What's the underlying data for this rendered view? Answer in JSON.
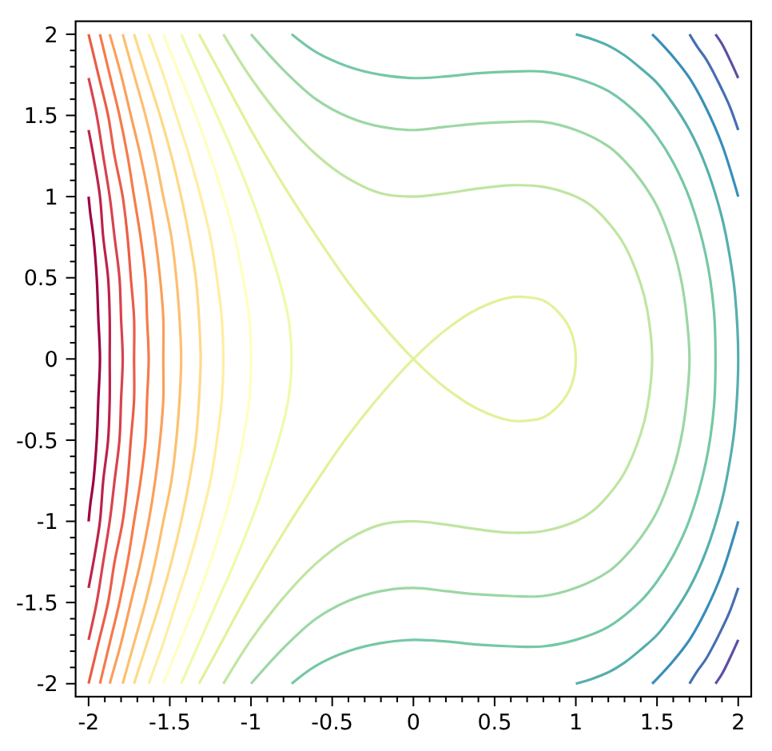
{
  "chart_data": {
    "type": "line",
    "xlim": [
      -2.08,
      2.08
    ],
    "ylim": [
      -2.08,
      2.08
    ],
    "xticks": [
      -2,
      {
        "value": -1.9,
        "label": null
      },
      {
        "value": -1.8,
        "label": null
      },
      {
        "value": -1.7,
        "label": null
      },
      {
        "value": -1.6,
        "label": null
      },
      -1.5,
      {
        "value": -1.4,
        "label": null
      },
      {
        "value": -1.3,
        "label": null
      },
      {
        "value": -1.2,
        "label": null
      },
      {
        "value": -1.1,
        "label": null
      },
      -1,
      {
        "value": -0.9,
        "label": null
      },
      {
        "value": -0.8,
        "label": null
      },
      {
        "value": -0.7,
        "label": null
      },
      {
        "value": -0.6,
        "label": null
      },
      -0.5,
      {
        "value": -0.4,
        "label": null
      },
      {
        "value": -0.3,
        "label": null
      },
      {
        "value": -0.2,
        "label": null
      },
      {
        "value": -0.1,
        "label": null
      },
      0,
      {
        "value": 0.1,
        "label": null
      },
      {
        "value": 0.2,
        "label": null
      },
      {
        "value": 0.3,
        "label": null
      },
      {
        "value": 0.4,
        "label": null
      },
      0.5,
      {
        "value": 0.6,
        "label": null
      },
      {
        "value": 0.7,
        "label": null
      },
      {
        "value": 0.8,
        "label": null
      },
      {
        "value": 0.9,
        "label": null
      },
      1,
      {
        "value": 1.1,
        "label": null
      },
      {
        "value": 1.2,
        "label": null
      },
      {
        "value": 1.3,
        "label": null
      },
      {
        "value": 1.4,
        "label": null
      },
      1.5,
      {
        "value": 1.6,
        "label": null
      },
      {
        "value": 1.7,
        "label": null
      },
      {
        "value": 1.8,
        "label": null
      },
      {
        "value": 1.9,
        "label": null
      },
      2
    ],
    "yticks": [
      -2,
      {
        "value": -1.9,
        "label": null
      },
      {
        "value": -1.8,
        "label": null
      },
      {
        "value": -1.7,
        "label": null
      },
      {
        "value": -1.6,
        "label": null
      },
      -1.5,
      {
        "value": -1.4,
        "label": null
      },
      {
        "value": -1.3,
        "label": null
      },
      {
        "value": -1.2,
        "label": null
      },
      {
        "value": -1.1,
        "label": null
      },
      -1,
      {
        "value": -0.9,
        "label": null
      },
      {
        "value": -0.8,
        "label": null
      },
      {
        "value": -0.7,
        "label": null
      },
      {
        "value": -0.6,
        "label": null
      },
      -0.5,
      {
        "value": -0.4,
        "label": null
      },
      {
        "value": -0.3,
        "label": null
      },
      {
        "value": -0.2,
        "label": null
      },
      {
        "value": -0.1,
        "label": null
      },
      0,
      {
        "value": 0.1,
        "label": null
      },
      {
        "value": 0.2,
        "label": null
      },
      {
        "value": 0.3,
        "label": null
      },
      {
        "value": 0.4,
        "label": null
      },
      0.5,
      {
        "value": 0.6,
        "label": null
      },
      {
        "value": 0.7,
        "label": null
      },
      {
        "value": 0.8,
        "label": null
      },
      {
        "value": 0.9,
        "label": null
      },
      1,
      {
        "value": 1.1,
        "label": null
      },
      {
        "value": 1.2,
        "label": null
      },
      {
        "value": 1.3,
        "label": null
      },
      {
        "value": 1.4,
        "label": null
      },
      1.5,
      {
        "value": 1.6,
        "label": null
      },
      {
        "value": 1.7,
        "label": null
      },
      {
        "value": 1.8,
        "label": null
      },
      {
        "value": 1.9,
        "label": null
      },
      2
    ],
    "series": [
      {
        "color": "#9e0142",
        "x": [
          -2,
          -1.99,
          -1.97,
          -1.95,
          -1.94,
          -1.93,
          -1.94,
          -1.95,
          -1.97,
          -1.99,
          -2
        ],
        "values": [
          1,
          0.9,
          0.75,
          0.5,
          0.25,
          0,
          -0.25,
          -0.5,
          -0.75,
          -0.9,
          -1
        ]
      },
      {
        "color": "#bd2349",
        "x": [
          -2,
          -1.97,
          -1.93,
          -1.91,
          -1.88,
          -1.87,
          -1.87,
          -1.87,
          -1.88,
          -1.91,
          -1.93,
          -1.97,
          -2
        ],
        "values": [
          1.41,
          1.25,
          1,
          0.75,
          0.5,
          0.25,
          0,
          -0.25,
          -0.5,
          -0.75,
          -1,
          -1.25,
          -1.41
        ]
      },
      {
        "color": "#d8434e",
        "x": [
          -2,
          -1.95,
          -1.91,
          -1.87,
          -1.84,
          -1.81,
          -1.8,
          -1.79,
          -1.8,
          -1.81,
          -1.84,
          -1.87,
          -1.91,
          -1.95,
          -2
        ],
        "values": [
          1.73,
          1.5,
          1.25,
          1,
          0.75,
          0.5,
          0.25,
          0,
          -0.25,
          -0.5,
          -0.75,
          -1,
          -1.25,
          -1.5,
          -1.73
        ]
      },
      {
        "color": "#ea5d47",
        "x": [
          -2,
          -1.94,
          -1.88,
          -1.84,
          -1.79,
          -1.76,
          -1.74,
          -1.72,
          -1.72,
          -1.72,
          -1.74,
          -1.76,
          -1.79,
          -1.84,
          -1.88,
          -1.94,
          -2
        ],
        "values": [
          2,
          1.75,
          1.5,
          1.25,
          1,
          0.75,
          0.5,
          0.25,
          0,
          -0.25,
          -0.5,
          -0.75,
          -1,
          -1.25,
          -1.5,
          -1.75,
          -2
        ]
      },
      {
        "color": "#f67b4a",
        "x": [
          -1.93,
          -1.87,
          -1.81,
          -1.76,
          -1.72,
          -1.68,
          -1.65,
          -1.64,
          -1.63,
          -1.64,
          -1.65,
          -1.68,
          -1.72,
          -1.76,
          -1.81,
          -1.87,
          -1.93
        ],
        "values": [
          2,
          1.75,
          1.5,
          1.25,
          1,
          0.75,
          0.5,
          0.25,
          0,
          -0.25,
          -0.5,
          -0.75,
          -1,
          -1.25,
          -1.5,
          -1.75,
          -2
        ]
      },
      {
        "color": "#fba05a",
        "x": [
          -1.87,
          -1.8,
          -1.74,
          -1.68,
          -1.63,
          -1.59,
          -1.56,
          -1.54,
          -1.54,
          -1.54,
          -1.56,
          -1.59,
          -1.63,
          -1.68,
          -1.74,
          -1.8,
          -1.87
        ],
        "values": [
          2,
          1.75,
          1.5,
          1.25,
          1,
          0.75,
          0.5,
          0.25,
          0,
          -0.25,
          -0.5,
          -0.75,
          -1,
          -1.25,
          -1.5,
          -1.75,
          -2
        ]
      },
      {
        "color": "#fdbf6f",
        "x": [
          -1.79,
          -1.72,
          -1.65,
          -1.59,
          -1.54,
          -1.49,
          -1.46,
          -1.44,
          -1.43,
          -1.44,
          -1.46,
          -1.49,
          -1.54,
          -1.59,
          -1.65,
          -1.72,
          -1.79
        ],
        "values": [
          2,
          1.75,
          1.5,
          1.25,
          1,
          0.75,
          0.5,
          0.25,
          0,
          -0.25,
          -0.5,
          -0.75,
          -1,
          -1.25,
          -1.5,
          -1.75,
          -2
        ]
      },
      {
        "color": "#feda86",
        "x": [
          -1.72,
          -1.64,
          -1.56,
          -1.49,
          -1.43,
          -1.38,
          -1.34,
          -1.32,
          -1.31,
          -1.32,
          -1.34,
          -1.38,
          -1.43,
          -1.49,
          -1.56,
          -1.64,
          -1.72
        ],
        "values": [
          2,
          1.75,
          1.5,
          1.25,
          1,
          0.75,
          0.5,
          0.25,
          0,
          -0.25,
          -0.5,
          -0.75,
          -1,
          -1.25,
          -1.5,
          -1.75,
          -2
        ]
      },
      {
        "color": "#feeea2",
        "x": [
          -1.63,
          -1.54,
          -1.46,
          -1.38,
          -1.31,
          -1.25,
          -1.21,
          -1.18,
          -1.17,
          -1.18,
          -1.21,
          -1.25,
          -1.31,
          -1.38,
          -1.46,
          -1.54,
          -1.63
        ],
        "values": [
          2,
          1.75,
          1.5,
          1.25,
          1,
          0.75,
          0.5,
          0.25,
          0,
          -0.25,
          -0.5,
          -0.75,
          -1,
          -1.25,
          -1.5,
          -1.75,
          -2
        ]
      },
      {
        "color": "#ffffbf",
        "x": [
          -1.54,
          -1.44,
          -1.34,
          -1.25,
          -1.17,
          -1.1,
          -1.05,
          -1.01,
          -1,
          -1.01,
          -1.05,
          -1.1,
          -1.17,
          -1.25,
          -1.34,
          -1.44,
          -1.54
        ],
        "values": [
          2,
          1.75,
          1.5,
          1.25,
          1,
          0.75,
          0.5,
          0.25,
          0,
          -0.25,
          -0.5,
          -0.75,
          -1,
          -1.25,
          -1.5,
          -1.75,
          -2
        ]
      },
      {
        "color": "#f1f9a9",
        "x": [
          -1.43,
          -1.32,
          -1.21,
          -1.1,
          -1,
          -0.91,
          -0.83,
          -0.77,
          -0.75,
          -0.77,
          -0.83,
          -0.91,
          -1,
          -1.1,
          -1.21,
          -1.32,
          -1.43
        ],
        "values": [
          2,
          1.75,
          1.5,
          1.25,
          1,
          0.75,
          0.5,
          0.25,
          0,
          -0.25,
          -0.5,
          -0.75,
          -1,
          -1.25,
          -1.5,
          -1.75,
          -2
        ]
      },
      {
        "color": "#e0f299",
        "x": [
          -1.32,
          -1.2,
          -1,
          -0.8,
          -0.6,
          -0.4,
          -0.2,
          0,
          0.2,
          0.4,
          0.6,
          0.7,
          0.8,
          0.9,
          0.97,
          1,
          0.97,
          0.9,
          0.8,
          0.7,
          0.6,
          0.4,
          0.2,
          0,
          -0.2,
          -0.4,
          -0.6,
          -0.8,
          -1,
          -1.2,
          -1.32
        ],
        "values": [
          2,
          1.78,
          1.41,
          1.07,
          0.76,
          0.47,
          0.22,
          0,
          -0.18,
          -0.31,
          -0.38,
          -0.38,
          -0.36,
          -0.28,
          -0.17,
          0,
          0.17,
          0.28,
          0.36,
          0.38,
          0.38,
          0.31,
          0.18,
          0,
          -0.22,
          -0.47,
          -0.76,
          -1.07,
          -1.41,
          -1.78,
          -2
        ]
      },
      {
        "color": "#bfe5a0",
        "x": [
          -1.17,
          -1,
          -0.8,
          -0.6,
          -0.4,
          -0.2,
          0,
          0.2,
          0.4,
          0.6,
          0.8,
          1,
          1.1,
          1.2,
          1.3,
          1.4,
          1.44,
          1.47,
          1.44,
          1.4,
          1.3,
          1.2,
          1.1,
          1,
          0.8,
          0.6,
          0.4,
          0.2,
          0,
          -0.2,
          -0.4,
          -0.6,
          -0.8,
          -1,
          -1.17
        ],
        "values": [
          2,
          1.73,
          1.47,
          1.26,
          1.11,
          1.02,
          1,
          1.02,
          1.05,
          1.07,
          1.06,
          1,
          0.94,
          0.84,
          0.7,
          0.46,
          0.3,
          0,
          -0.3,
          -0.46,
          -0.7,
          -0.84,
          -0.94,
          -1,
          -1.06,
          -1.07,
          -1.05,
          -1.02,
          -1,
          -1.02,
          -1.11,
          -1.26,
          -1.47,
          -1.73,
          -2
        ]
      },
      {
        "color": "#9cd7a4",
        "x": [
          -1,
          -0.8,
          -0.6,
          -0.4,
          -0.2,
          0,
          0.2,
          0.4,
          0.6,
          0.8,
          1,
          1.2,
          1.3,
          1.4,
          1.5,
          1.6,
          1.65,
          1.68,
          1.7,
          1.68,
          1.65,
          1.6,
          1.5,
          1.4,
          1.3,
          1.2,
          1,
          0.8,
          0.6,
          0.4,
          0.2,
          0,
          -0.2,
          -0.4,
          -0.6,
          -0.8,
          -1
        ],
        "values": [
          2,
          1.78,
          1.6,
          1.49,
          1.43,
          1.41,
          1.43,
          1.45,
          1.46,
          1.46,
          1.41,
          1.31,
          1.22,
          1.1,
          0.94,
          0.68,
          0.48,
          0.28,
          0,
          -0.28,
          -0.48,
          -0.68,
          -0.94,
          -1.1,
          -1.22,
          -1.31,
          -1.41,
          -1.46,
          -1.46,
          -1.45,
          -1.43,
          -1.41,
          -1.43,
          -1.49,
          -1.6,
          -1.78,
          -2
        ]
      },
      {
        "color": "#75c8a5",
        "x": [
          -0.75,
          -0.6,
          -0.4,
          -0.2,
          0,
          0.2,
          0.4,
          0.6,
          0.8,
          1,
          1.2,
          1.4,
          1.5,
          1.6,
          1.7,
          1.8,
          1.85,
          1.86,
          1.85,
          1.8,
          1.7,
          1.6,
          1.5,
          1.4,
          1.2,
          1,
          0.8,
          0.6,
          0.4,
          0.2,
          0,
          -0.2,
          -0.4,
          -0.6,
          -0.75
        ],
        "values": [
          2,
          1.89,
          1.8,
          1.75,
          1.73,
          1.74,
          1.76,
          1.77,
          1.77,
          1.73,
          1.65,
          1.49,
          1.37,
          1.21,
          0.99,
          0.64,
          0.3,
          0,
          -0.3,
          -0.64,
          -0.99,
          -1.21,
          -1.37,
          -1.49,
          -1.65,
          -1.73,
          -1.77,
          -1.77,
          -1.76,
          -1.74,
          -1.73,
          -1.75,
          -1.8,
          -1.89,
          -2
        ]
      },
      {
        "color": "#55afad",
        "x": [
          1,
          1.1,
          1.2,
          1.3,
          1.4,
          1.5,
          1.6,
          1.7,
          1.8,
          1.9,
          1.95,
          1.98,
          2,
          1.98,
          1.95,
          1.9,
          1.8,
          1.7,
          1.6,
          1.5,
          1.4,
          1.3,
          1.2,
          1.1,
          1
        ],
        "values": [
          2,
          1.97,
          1.93,
          1.87,
          1.79,
          1.7,
          1.57,
          1.41,
          1.19,
          0.87,
          0.62,
          0.4,
          0,
          -0.4,
          -0.62,
          -0.87,
          -1.19,
          -1.41,
          -1.57,
          -1.7,
          -1.79,
          -1.87,
          -1.93,
          -1.97,
          -2
        ]
      },
      {
        "color": "#388eba",
        "x": [
          1.47,
          1.5,
          1.6,
          1.7,
          1.8,
          1.9,
          2
        ],
        "values": [
          2,
          1.97,
          1.86,
          1.73,
          1.55,
          1.32,
          1
        ]
      },
      {
        "color": "#388eba",
        "x": [
          2,
          1.9,
          1.8,
          1.7,
          1.6,
          1.5,
          1.47
        ],
        "values": [
          -1,
          -1.32,
          -1.55,
          -1.73,
          -1.86,
          -1.97,
          -2
        ]
      },
      {
        "color": "#466fb1",
        "x": [
          1.7,
          1.75,
          1.8,
          1.85,
          1.9,
          1.95,
          2
        ],
        "values": [
          2,
          1.92,
          1.85,
          1.76,
          1.66,
          1.55,
          1.41
        ]
      },
      {
        "color": "#466fb1",
        "x": [
          2,
          1.95,
          1.9,
          1.85,
          1.8,
          1.75,
          1.7
        ],
        "values": [
          -1.41,
          -1.55,
          -1.66,
          -1.76,
          -1.85,
          -1.92,
          -2
        ]
      },
      {
        "color": "#5e4fa2",
        "x": [
          1.86,
          1.9,
          1.95,
          2
        ],
        "values": [
          2,
          1.94,
          1.84,
          1.73
        ]
      },
      {
        "color": "#5e4fa2",
        "x": [
          2,
          1.95,
          1.9,
          1.86
        ],
        "values": [
          -1.73,
          -1.84,
          -1.94,
          -2
        ]
      }
    ]
  }
}
